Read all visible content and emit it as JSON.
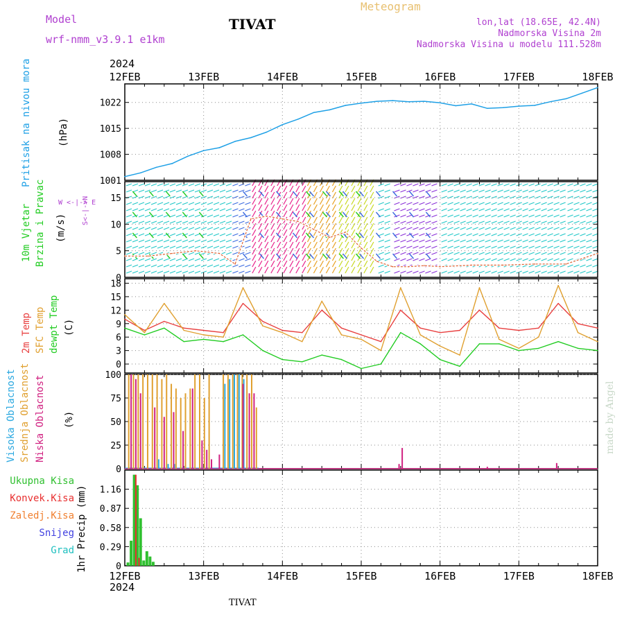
{
  "header": {
    "model_label": "Model",
    "model_name": "wrf-nmm_v3.9.1  e1km",
    "station": "TIVAT",
    "title": "Meteogram",
    "lonlat": "lon,lat (18.65E, 42.4N)",
    "altitude": "Nadmorska Visina 2m",
    "model_altitude": "Nadmorska Visina u modelu 111.528m",
    "footer_station": "TIVAT",
    "credit": "made by Angel"
  },
  "colors": {
    "pressure": "#1ea0e6",
    "wind_speed_label": "#22cc22",
    "wind_dir_label": "#22cc22",
    "temp2m": "#e84040",
    "sfc_temp": "#e0a030",
    "dewpt": "#22cc22",
    "cloud_high": "#2aa8e0",
    "cloud_mid": "#e0a030",
    "cloud_low": "#d02080",
    "precip_total": "#30c030",
    "precip_conv": "#e83030",
    "precip_frozen": "#f08030",
    "snow": "#4040e0",
    "hail": "#20c0c0",
    "header_purple": "#b040d0",
    "meteogram_title": "#e8c070"
  },
  "time_axis": {
    "year": "2024",
    "ticks": [
      "12FEB",
      "13FEB",
      "14FEB",
      "15FEB",
      "16FEB",
      "17FEB",
      "18FEB"
    ]
  },
  "panels": {
    "pressure": {
      "label": "Pritisak na nivou mora",
      "unit": "(hPa)"
    },
    "wind": {
      "label1": "10m Vjetar",
      "label2": "Brzina i Pravac",
      "unit": "(m/s)",
      "compass": "W  <-|->  E",
      "compass_ns": "S<-|->N"
    },
    "temp": {
      "label1": "2m Temp",
      "label2": "SFC Temp",
      "label3": "dewpt Temp",
      "unit": "(C)"
    },
    "cloud": {
      "label1": "Visoka Oblacnost",
      "label2": "Srednja Oblacnost",
      "label3": "Niska Oblacnost",
      "unit": "(%)"
    },
    "precip": {
      "unit": "1hr Precip (mm)",
      "legend": [
        "Ukupna Kisa",
        "Konvek.Kisa",
        "Zaledj.Kisa",
        "Snijeg",
        "Grad"
      ]
    }
  },
  "chart_data": [
    {
      "type": "line",
      "name": "pressure",
      "ylim": [
        1001,
        1027
      ],
      "yticks": [
        "1001",
        "1008",
        "1015",
        "1022"
      ],
      "ytick_values": [
        1001,
        1008,
        1015,
        1022
      ],
      "x_days": [
        0,
        0.2,
        0.4,
        0.6,
        0.8,
        1.0,
        1.2,
        1.4,
        1.6,
        1.8,
        2.0,
        2.2,
        2.4,
        2.6,
        2.8,
        3.0,
        3.2,
        3.4,
        3.6,
        3.8,
        4.0,
        4.2,
        4.4,
        4.6,
        4.8,
        5.0,
        5.2,
        5.4,
        5.6,
        5.8,
        6.0
      ],
      "values": [
        1002.0,
        1003.0,
        1004.5,
        1005.5,
        1007.5,
        1009.0,
        1009.8,
        1011.5,
        1012.5,
        1014.0,
        1016.0,
        1017.5,
        1019.3,
        1020.0,
        1021.2,
        1021.8,
        1022.3,
        1022.5,
        1022.2,
        1022.3,
        1021.9,
        1021.1,
        1021.6,
        1020.4,
        1020.6,
        1021.0,
        1021.2,
        1022.2,
        1023.0,
        1024.5,
        1026.0
      ]
    },
    {
      "type": "line",
      "name": "wind",
      "ylim": [
        0,
        18
      ],
      "yticks": [
        "0",
        "5",
        "10",
        "15"
      ],
      "ytick_values": [
        0,
        5,
        10,
        15
      ],
      "series": [
        {
          "name": "10m Vjetar",
          "x_days": [
            0,
            0.3,
            0.6,
            0.9,
            1.2,
            1.4,
            1.6,
            1.8,
            2.0,
            2.2,
            2.4,
            2.6,
            2.8,
            3.0,
            3.2,
            3.4,
            3.6,
            3.8,
            4.0,
            4.4,
            4.8,
            5.2,
            5.6,
            6.0
          ],
          "values": [
            4.0,
            4.0,
            4.5,
            5.0,
            4.5,
            2.5,
            11.0,
            11.5,
            11.0,
            10.5,
            9.0,
            7.5,
            8.5,
            5.5,
            3.0,
            2.0,
            2.0,
            2.2,
            2.0,
            2.3,
            2.3,
            2.5,
            2.5,
            4.5
          ]
        }
      ]
    },
    {
      "type": "line",
      "name": "temperature",
      "ylim": [
        -2,
        19
      ],
      "yticks": [
        "0",
        "3",
        "6",
        "9",
        "12",
        "15",
        "18"
      ],
      "ytick_values": [
        0,
        3,
        6,
        9,
        12,
        15,
        18
      ],
      "x_days": [
        0,
        0.25,
        0.5,
        0.75,
        1.0,
        1.25,
        1.5,
        1.75,
        2.0,
        2.25,
        2.5,
        2.75,
        3.0,
        3.25,
        3.5,
        3.75,
        4.0,
        4.25,
        4.5,
        4.75,
        5.0,
        5.25,
        5.5,
        5.75,
        6.0
      ],
      "series": [
        {
          "name": "2m Temp",
          "values": [
            10.0,
            7.5,
            9.5,
            8.0,
            7.5,
            7.0,
            13.5,
            9.5,
            7.5,
            7.0,
            12.0,
            8.0,
            6.5,
            5.0,
            12.0,
            8.0,
            7.0,
            7.5,
            12.0,
            8.0,
            7.5,
            8.0,
            13.5,
            9.0,
            8.0
          ]
        },
        {
          "name": "SFC Temp",
          "values": [
            11.0,
            7.0,
            13.5,
            7.5,
            6.5,
            6.0,
            17.0,
            8.5,
            7.0,
            5.0,
            14.0,
            6.5,
            5.5,
            3.0,
            17.0,
            6.5,
            4.0,
            2.0,
            17.0,
            5.5,
            3.5,
            6.0,
            17.5,
            7.0,
            5.0
          ]
        },
        {
          "name": "dewpt Temp",
          "values": [
            8.0,
            6.5,
            8.0,
            5.0,
            5.5,
            5.0,
            6.5,
            3.0,
            1.0,
            0.5,
            2.0,
            1.0,
            -1.0,
            0.0,
            7.0,
            4.5,
            1.0,
            -0.5,
            4.5,
            4.5,
            3.0,
            3.5,
            5.0,
            3.5,
            3.0
          ]
        }
      ]
    },
    {
      "type": "bar",
      "name": "cloud",
      "ylim": [
        0,
        100
      ],
      "yticks": [
        "0",
        "25",
        "50",
        "75",
        "100"
      ],
      "ytick_values": [
        0,
        25,
        50,
        75,
        100
      ],
      "series": [
        {
          "name": "Srednja Oblacnost",
          "x_days": [
            0.05,
            0.11,
            0.17,
            0.23,
            0.29,
            0.35,
            0.41,
            0.47,
            0.53,
            0.59,
            0.65,
            0.71,
            0.77,
            0.83,
            0.89,
            0.95,
            1.01,
            1.07,
            1.25,
            1.31,
            1.37,
            1.43,
            1.49,
            1.55,
            1.61,
            1.67
          ],
          "values": [
            100,
            100,
            100,
            100,
            100,
            100,
            100,
            95,
            100,
            90,
            85,
            75,
            80,
            85,
            100,
            100,
            75,
            100,
            100,
            100,
            100,
            100,
            100,
            100,
            100,
            65
          ]
        },
        {
          "name": "Visoka Oblacnost",
          "x_days": [
            0.43,
            0.55,
            0.63,
            1.27,
            1.33,
            1.39,
            1.45,
            1.51
          ],
          "values": [
            10,
            5,
            5,
            90,
            95,
            100,
            100,
            95
          ]
        },
        {
          "name": "Niska Oblacnost",
          "x_days": [
            0.08,
            0.14,
            0.2,
            0.38,
            0.5,
            0.62,
            0.74,
            0.86,
            0.98,
            1.04,
            1.1,
            1.2,
            1.5,
            1.58,
            1.64,
            3.48,
            3.52,
            4.6,
            5.48
          ],
          "values": [
            100,
            95,
            80,
            65,
            55,
            60,
            40,
            85,
            30,
            20,
            10,
            15,
            90,
            80,
            80,
            5,
            22,
            2,
            6
          ]
        }
      ]
    },
    {
      "type": "bar",
      "name": "precip",
      "ylim": [
        0,
        1.45
      ],
      "yticks": [
        "0",
        "0.29",
        "0.58",
        "0.87",
        "1.16"
      ],
      "ytick_values": [
        0,
        0.29,
        0.58,
        0.87,
        1.16
      ],
      "series": [
        {
          "name": "Ukupna Kisa",
          "x_days": [
            0.04,
            0.08,
            0.12,
            0.16,
            0.2,
            0.24,
            0.28,
            0.32,
            0.36,
            0.4
          ],
          "values": [
            0.05,
            0.38,
            1.38,
            1.22,
            0.72,
            0.08,
            0.22,
            0.14,
            0.06,
            0.0
          ]
        },
        {
          "name": "Konvek.Kisa",
          "x_days": [
            0.14,
            0.18
          ],
          "values": [
            1.38,
            0.12
          ]
        }
      ]
    }
  ]
}
